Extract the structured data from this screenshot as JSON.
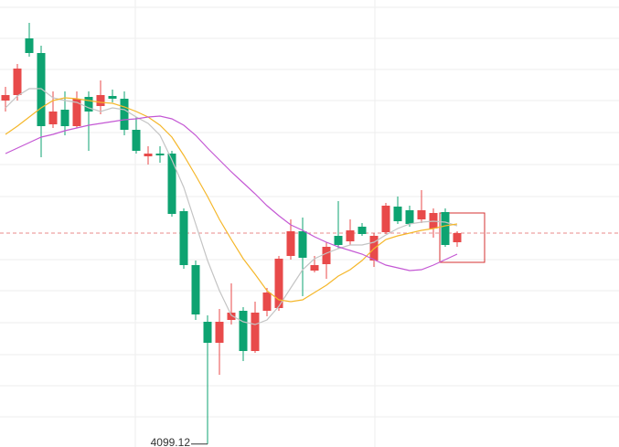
{
  "chart_data": {
    "type": "candlestick",
    "open": [
      4287,
      4290,
      4321,
      4313,
      4274,
      4282,
      4273,
      4289,
      4284,
      4289.5,
      4288,
      4271,
      4256.5,
      4258,
      4258,
      4226.5,
      4197,
      4166,
      4154.5,
      4167,
      4172,
      4150,
      4172,
      4173.5,
      4202,
      4215.5,
      4194,
      4197.5,
      4213,
      4210,
      4218,
      4199.5,
      4215,
      4229,
      4227,
      4222,
      4217,
      4226,
      4209.5
    ],
    "high": [
      4294.5,
      4307,
      4329.5,
      4317,
      4292,
      4292,
      4292,
      4292,
      4298,
      4293,
      4292,
      4278,
      4262,
      4262,
      4259.5,
      4228,
      4199.5,
      4169.5,
      4173,
      4187,
      4174,
      4177,
      4184.5,
      4202,
      4222,
      4223,
      4202,
      4209.5,
      4232,
      4222,
      4220,
      4214.5,
      4231,
      4234.5,
      4229.5,
      4238,
      4228,
      4228,
      4215.5
    ],
    "low": [
      4281,
      4287,
      4311,
      4256,
      4272,
      4268,
      4272,
      4259.5,
      4279.5,
      4286,
      4268,
      4258,
      4252,
      4253,
      4223.5,
      4195,
      4167,
      4099.12,
      4137,
      4164.5,
      4144.5,
      4149,
      4169,
      4172,
      4200,
      4180,
      4193,
      4189.5,
      4206,
      4208,
      4213,
      4196,
      4214,
      4219.5,
      4218,
      4220,
      4212,
      4207,
      4207
    ],
    "close": [
      4290,
      4304.5,
      4313,
      4273,
      4281,
      4273,
      4288,
      4281,
      4290,
      4288,
      4271,
      4259.5,
      4258,
      4257,
      4225,
      4197,
      4170,
      4154.5,
      4166,
      4171,
      4150,
      4171,
      4182,
      4200.5,
      4215.5,
      4201,
      4197,
      4207,
      4208,
      4216,
      4214,
      4213,
      4229.5,
      4221,
      4219.5,
      4227,
      4225.5,
      4208,
      4214.5
    ],
    "up_color": "#e84a4a",
    "down_color": "#0ea371",
    "lines": [
      {
        "color": "#c4c4c4",
        "values": [
          4283,
          4289.5,
          4293.5,
          4293.5,
          4288.5,
          4287,
          4286,
          4283,
          4281,
          4283,
          4282,
          4278,
          4274.5,
          4268,
          4254.5,
          4239.5,
          4219.5,
          4199.5,
          4183,
          4169.5,
          4166,
          4164.5,
          4167,
          4174.5,
          4184.5,
          4194.5,
          4200.5,
          4203.5,
          4206,
          4208,
          4208,
          4209.5,
          4213.5,
          4217,
          4219.5,
          4220.5,
          4221,
          4220.5,
          4218.5
        ]
      },
      {
        "color": "#f5b72b",
        "values": [
          4268.5,
          4273,
          4278,
          4283,
          4287,
          4288.5,
          4288,
          4287,
          4286,
          4285.5,
          4283.5,
          4281,
          4278,
          4273.5,
          4267,
          4257,
          4246,
          4234.5,
          4222,
          4211,
          4200.5,
          4192,
          4183,
          4178,
          4177,
          4178,
          4182,
          4186,
          4191,
          4194.5,
          4199.5,
          4206,
          4211,
          4213,
          4214.5,
          4216,
          4217,
          4218.5,
          4219.5
        ]
      },
      {
        "color": "#c458d4",
        "values": [
          4258,
          4261,
          4264,
          4267,
          4268.5,
          4270.5,
          4272,
          4273.5,
          4274.5,
          4275.5,
          4276.5,
          4277,
          4278,
          4278.5,
          4277,
          4273.5,
          4268,
          4261,
          4254.5,
          4248,
          4242,
          4236,
          4229.5,
          4224,
          4219,
          4216,
          4212.5,
          4209.5,
          4207,
          4205,
          4203,
          4200,
          4197,
          4195.5,
          4194,
          4194.5,
          4197,
          4200,
          4203
        ]
      }
    ],
    "last_price": 4214.5,
    "last_price_color": "#e88a8a",
    "annotation": "4099.12",
    "ylim": [
      4097.5,
      4342
    ]
  }
}
